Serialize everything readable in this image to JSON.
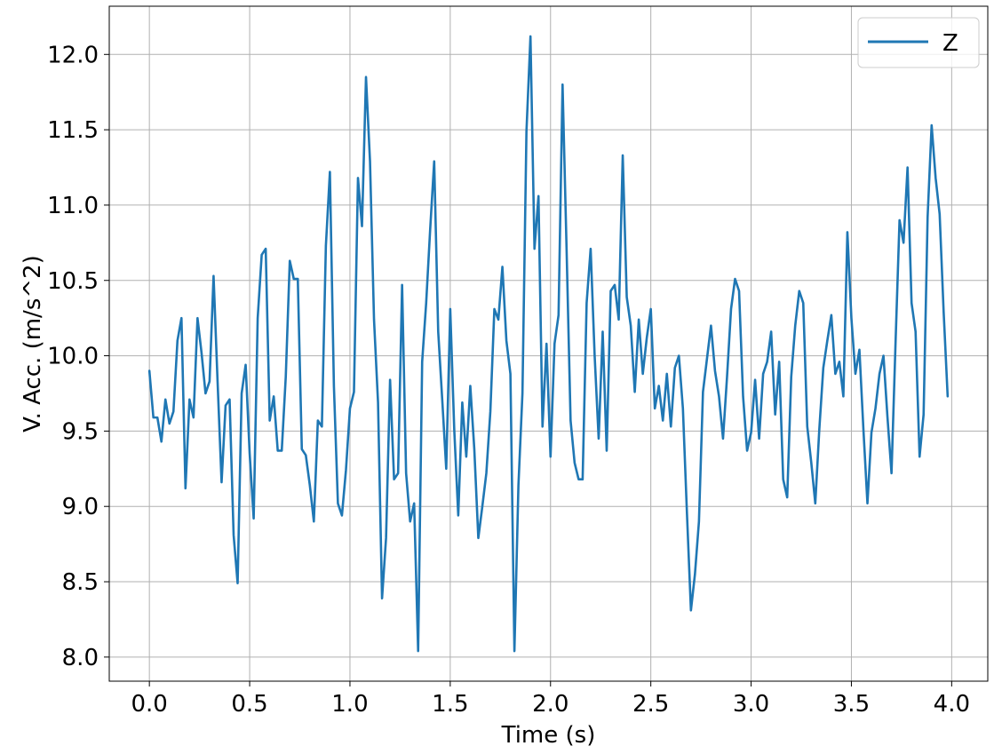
{
  "chart_data": {
    "type": "line",
    "xlabel": "Time (s)",
    "ylabel": "V. Acc. (m/s^2)",
    "xlim": [
      -0.2,
      4.18
    ],
    "ylim": [
      7.84,
      12.32
    ],
    "xticks": [
      0.0,
      0.5,
      1.0,
      1.5,
      2.0,
      2.5,
      3.0,
      3.5,
      4.0
    ],
    "xtick_labels": [
      "0.0",
      "0.5",
      "1.0",
      "1.5",
      "2.0",
      "2.5",
      "3.0",
      "3.5",
      "4.0"
    ],
    "yticks": [
      8.0,
      8.5,
      9.0,
      9.5,
      10.0,
      10.5,
      11.0,
      11.5,
      12.0
    ],
    "ytick_labels": [
      "8.0",
      "8.5",
      "9.0",
      "9.5",
      "10.0",
      "10.5",
      "11.0",
      "11.5",
      "12.0"
    ],
    "grid": true,
    "legend_position": "top-right",
    "colors": {
      "series": "#1f77b4",
      "grid": "#b0b0b0",
      "axis": "#000000"
    },
    "series": [
      {
        "name": "Z",
        "x": [
          0.0,
          0.02,
          0.04,
          0.06,
          0.08,
          0.1,
          0.12,
          0.14,
          0.16,
          0.18,
          0.2,
          0.22,
          0.24,
          0.26,
          0.28,
          0.3,
          0.32,
          0.34,
          0.36,
          0.38,
          0.4,
          0.42,
          0.44,
          0.46,
          0.48,
          0.5,
          0.52,
          0.54,
          0.56,
          0.58,
          0.6,
          0.62,
          0.64,
          0.66,
          0.68,
          0.7,
          0.72,
          0.74,
          0.76,
          0.78,
          0.8,
          0.82,
          0.84,
          0.86,
          0.88,
          0.9,
          0.92,
          0.94,
          0.96,
          0.98,
          1.0,
          1.02,
          1.04,
          1.06,
          1.08,
          1.1,
          1.12,
          1.14,
          1.16,
          1.18,
          1.2,
          1.22,
          1.24,
          1.26,
          1.28,
          1.3,
          1.32,
          1.34,
          1.36,
          1.38,
          1.4,
          1.42,
          1.44,
          1.46,
          1.48,
          1.5,
          1.52,
          1.54,
          1.56,
          1.58,
          1.6,
          1.62,
          1.64,
          1.66,
          1.68,
          1.7,
          1.72,
          1.74,
          1.76,
          1.78,
          1.8,
          1.82,
          1.84,
          1.86,
          1.88,
          1.9,
          1.92,
          1.94,
          1.96,
          1.98,
          2.0,
          2.02,
          2.04,
          2.06,
          2.08,
          2.1,
          2.12,
          2.14,
          2.16,
          2.18,
          2.2,
          2.22,
          2.24,
          2.26,
          2.28,
          2.3,
          2.32,
          2.34,
          2.36,
          2.38,
          2.4,
          2.42,
          2.44,
          2.46,
          2.48,
          2.5,
          2.52,
          2.54,
          2.56,
          2.58,
          2.6,
          2.62,
          2.64,
          2.66,
          2.68,
          2.7,
          2.72,
          2.74,
          2.76,
          2.78,
          2.8,
          2.82,
          2.84,
          2.86,
          2.88,
          2.9,
          2.92,
          2.94,
          2.96,
          2.98,
          3.0,
          3.02,
          3.04,
          3.06,
          3.08,
          3.1,
          3.12,
          3.14,
          3.16,
          3.18,
          3.2,
          3.22,
          3.24,
          3.26,
          3.28,
          3.3,
          3.32,
          3.34,
          3.36,
          3.38,
          3.4,
          3.42,
          3.44,
          3.46,
          3.48,
          3.5,
          3.52,
          3.54,
          3.56,
          3.58,
          3.6,
          3.62,
          3.64,
          3.66,
          3.68,
          3.7,
          3.72,
          3.74,
          3.76,
          3.78,
          3.8,
          3.82,
          3.84,
          3.86,
          3.88,
          3.9,
          3.92,
          3.94,
          3.96,
          3.98
        ],
        "y": [
          9.9,
          9.59,
          9.59,
          9.43,
          9.71,
          9.55,
          9.63,
          10.1,
          10.25,
          9.12,
          9.71,
          9.59,
          10.25,
          10.02,
          9.75,
          9.83,
          10.53,
          9.83,
          9.16,
          9.67,
          9.71,
          8.81,
          8.49,
          9.75,
          9.94,
          9.35,
          8.92,
          10.25,
          10.67,
          10.71,
          9.57,
          9.73,
          9.37,
          9.37,
          9.86,
          10.63,
          10.51,
          10.51,
          9.38,
          9.34,
          9.14,
          8.9,
          9.57,
          9.53,
          10.73,
          11.22,
          9.8,
          9.02,
          8.94,
          9.24,
          9.65,
          9.76,
          11.18,
          10.86,
          11.85,
          11.29,
          10.24,
          9.69,
          8.39,
          8.79,
          9.84,
          9.18,
          9.22,
          10.47,
          9.22,
          8.9,
          9.02,
          8.04,
          9.96,
          10.35,
          10.84,
          11.29,
          10.16,
          9.71,
          9.25,
          10.31,
          9.51,
          8.94,
          9.69,
          9.33,
          9.8,
          9.38,
          8.79,
          9.0,
          9.22,
          9.63,
          10.31,
          10.24,
          10.59,
          10.1,
          9.88,
          8.04,
          9.14,
          9.75,
          11.49,
          12.12,
          10.71,
          11.06,
          9.53,
          10.08,
          9.33,
          10.08,
          10.27,
          11.8,
          10.71,
          9.57,
          9.29,
          9.18,
          9.18,
          10.35,
          10.71,
          10.0,
          9.45,
          10.16,
          9.37,
          10.43,
          10.47,
          10.24,
          11.33,
          10.39,
          10.2,
          9.76,
          10.24,
          9.88,
          10.12,
          10.31,
          9.65,
          9.8,
          9.57,
          9.88,
          9.53,
          9.92,
          10.0,
          9.65,
          8.96,
          8.31,
          8.55,
          8.9,
          9.76,
          9.98,
          10.2,
          9.9,
          9.73,
          9.45,
          9.86,
          10.31,
          10.51,
          10.43,
          9.73,
          9.37,
          9.49,
          9.84,
          9.45,
          9.88,
          9.96,
          10.16,
          9.61,
          9.96,
          9.18,
          9.06,
          9.86,
          10.2,
          10.43,
          10.35,
          9.53,
          9.29,
          9.02,
          9.51,
          9.92,
          10.1,
          10.27,
          9.88,
          9.96,
          9.73,
          10.82,
          10.25,
          9.88,
          10.04,
          9.51,
          9.02,
          9.49,
          9.65,
          9.88,
          10.0,
          9.59,
          9.22,
          10.08,
          10.9,
          10.75,
          11.25,
          10.35,
          10.16,
          9.33,
          9.61,
          10.92,
          11.53,
          11.18,
          10.94,
          10.29,
          9.73
        ]
      }
    ]
  }
}
